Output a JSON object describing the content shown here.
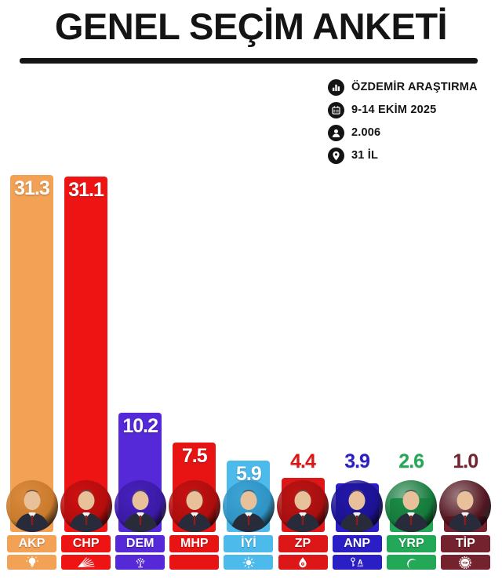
{
  "title": "GENEL SEÇİM ANKETİ",
  "info": {
    "rows": [
      {
        "icon": "bar-chart-icon",
        "label": "ÖZDEMİR ARAŞTIRMA"
      },
      {
        "icon": "calendar-icon",
        "label": "9-14 EKİM 2025"
      },
      {
        "icon": "person-icon",
        "label": "2.006"
      },
      {
        "icon": "location-pin-icon",
        "label": "31 İL"
      }
    ]
  },
  "chart_data": {
    "type": "bar",
    "title": "GENEL SEÇİM ANKETİ",
    "categories": [
      "AKP",
      "CHP",
      "DEM",
      "MHP",
      "İYİ",
      "ZP",
      "ANP",
      "YRP",
      "TİP"
    ],
    "values": [
      31.3,
      31.1,
      10.2,
      7.5,
      5.9,
      4.4,
      3.9,
      2.6,
      1.0
    ],
    "value_labels": [
      "31.3",
      "31.1",
      "10.2",
      "7.5",
      "5.9",
      "4.4",
      "3.9",
      "2.6",
      "1.0"
    ],
    "xlabel": "",
    "ylabel": "",
    "ylim": [
      0,
      33
    ],
    "grid": false,
    "legend": false,
    "label_position_rule": "inside bar top when value >= 5, above bar in party color when value < 5",
    "parties": [
      {
        "abbr": "AKP",
        "value": 31.3,
        "label": "31.3",
        "color": "#F2A155",
        "photo_bg": "#C97A2C",
        "logo": "bulb"
      },
      {
        "abbr": "CHP",
        "value": 31.1,
        "label": "31.1",
        "color": "#EF1414",
        "photo_bg": "#B30D0D",
        "logo": "six-arrows"
      },
      {
        "abbr": "DEM",
        "value": 10.2,
        "label": "10.2",
        "color": "#5529D8",
        "photo_bg": "#3B1AA6",
        "logo": "tree"
      },
      {
        "abbr": "MHP",
        "value": 7.5,
        "label": "7.5",
        "color": "#E81414",
        "photo_bg": "#AD0E0E",
        "logo": "three-crescents"
      },
      {
        "abbr": "İYİ",
        "value": 5.9,
        "label": "5.9",
        "color": "#4CBBEC",
        "photo_bg": "#2F93C4",
        "logo": "sun"
      },
      {
        "abbr": "ZP",
        "value": 4.4,
        "label": "4.4",
        "color": "#DD1717",
        "photo_bg": "#A61010",
        "logo": "drop"
      },
      {
        "abbr": "ANP",
        "value": 3.9,
        "label": "3.9",
        "color": "#2A1EC4",
        "photo_bg": "#1C1292",
        "logo": "key"
      },
      {
        "abbr": "YRP",
        "value": 2.6,
        "label": "2.6",
        "color": "#23A857",
        "photo_bg": "#167A3C",
        "logo": "crescent"
      },
      {
        "abbr": "TİP",
        "value": 1.0,
        "label": "1.0",
        "color": "#74222D",
        "photo_bg": "#531620",
        "logo": "tip-emblem"
      }
    ]
  }
}
